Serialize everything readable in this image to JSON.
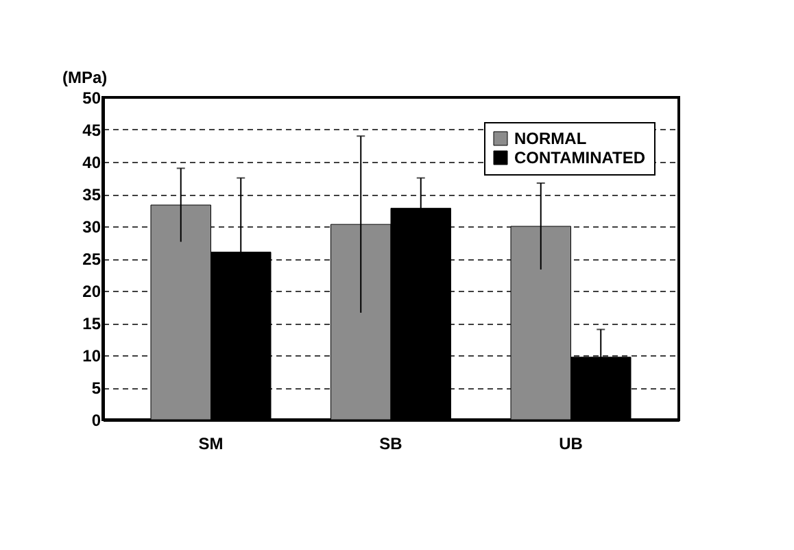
{
  "chart_data": {
    "type": "bar",
    "ylabel": "(MPa)",
    "categories": [
      "SM",
      "SB",
      "UB"
    ],
    "series": [
      {
        "name": "NORMAL",
        "color": "#8c8c8c",
        "values": [
          33.3,
          30.3,
          30.0
        ],
        "errors": [
          5.7,
          13.7,
          6.7
        ]
      },
      {
        "name": "CONTAMINATED",
        "color": "#000000",
        "values": [
          26.0,
          32.8,
          9.7
        ],
        "errors": [
          11.5,
          4.7,
          4.3
        ]
      }
    ],
    "ylim": [
      0,
      50
    ],
    "yticks": [
      0,
      5,
      10,
      15,
      20,
      25,
      30,
      35,
      40,
      45,
      50
    ],
    "grid": "y",
    "legend": "top right"
  }
}
